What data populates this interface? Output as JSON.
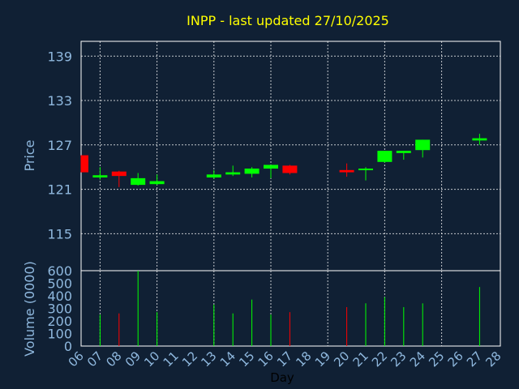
{
  "chart_data": {
    "type": "candlestick",
    "title": "INPP - last updated 27/10/2025",
    "xlabel": "Day",
    "ylabel_price": "Price",
    "ylabel_volume": "Volume (0000)",
    "x_ticks": [
      "06",
      "07",
      "08",
      "09",
      "10",
      "11",
      "12",
      "13",
      "14",
      "15",
      "16",
      "17",
      "18",
      "19",
      "20",
      "21",
      "22",
      "23",
      "24",
      "25",
      "26",
      "27",
      "28"
    ],
    "price_ticks": [
      115,
      121,
      127,
      133,
      139
    ],
    "price_range": [
      110,
      141
    ],
    "volume_ticks": [
      0,
      100,
      200,
      300,
      400,
      500,
      600
    ],
    "volume_range": [
      0,
      600
    ],
    "grid": true,
    "colors": {
      "up": "#00ff00",
      "down": "#ff0000",
      "background": "#102034",
      "title": "#ffff00",
      "axis_text": "#8fb8de"
    },
    "candles": [
      {
        "day": "06",
        "open": 125.6,
        "high": 125.6,
        "low": 123.3,
        "close": 123.3,
        "volume": 0
      },
      {
        "day": "07",
        "open": 122.6,
        "high": 124.0,
        "low": 122.3,
        "close": 122.9,
        "volume": 250
      },
      {
        "day": "08",
        "open": 123.4,
        "high": 123.5,
        "low": 121.3,
        "close": 122.8,
        "volume": 260
      },
      {
        "day": "09",
        "open": 121.6,
        "high": 123.2,
        "low": 121.5,
        "close": 122.5,
        "volume": 600
      },
      {
        "day": "10",
        "open": 121.7,
        "high": 123.0,
        "low": 121.6,
        "close": 122.1,
        "volume": 270
      },
      {
        "day": "13",
        "open": 122.6,
        "high": 123.6,
        "low": 122.4,
        "close": 123.0,
        "volume": 330
      },
      {
        "day": "14",
        "open": 123.0,
        "high": 124.2,
        "low": 122.8,
        "close": 123.3,
        "volume": 260
      },
      {
        "day": "15",
        "open": 123.1,
        "high": 124.0,
        "low": 122.6,
        "close": 123.8,
        "volume": 370
      },
      {
        "day": "16",
        "open": 123.8,
        "high": 124.3,
        "low": 122.5,
        "close": 124.3,
        "volume": 250
      },
      {
        "day": "17",
        "open": 124.2,
        "high": 124.3,
        "low": 123.0,
        "close": 123.2,
        "volume": 270
      },
      {
        "day": "20",
        "open": 123.6,
        "high": 124.5,
        "low": 122.7,
        "close": 123.3,
        "volume": 310
      },
      {
        "day": "21",
        "open": 123.6,
        "high": 124.0,
        "low": 122.2,
        "close": 123.8,
        "volume": 340
      },
      {
        "day": "22",
        "open": 124.7,
        "high": 126.2,
        "low": 124.6,
        "close": 126.2,
        "volume": 390
      },
      {
        "day": "23",
        "open": 125.9,
        "high": 126.2,
        "low": 125.0,
        "close": 126.2,
        "volume": 310
      },
      {
        "day": "24",
        "open": 126.3,
        "high": 127.7,
        "low": 125.3,
        "close": 127.7,
        "volume": 340
      },
      {
        "day": "27",
        "open": 127.6,
        "high": 128.5,
        "low": 127.0,
        "close": 127.9,
        "volume": 470
      }
    ]
  }
}
